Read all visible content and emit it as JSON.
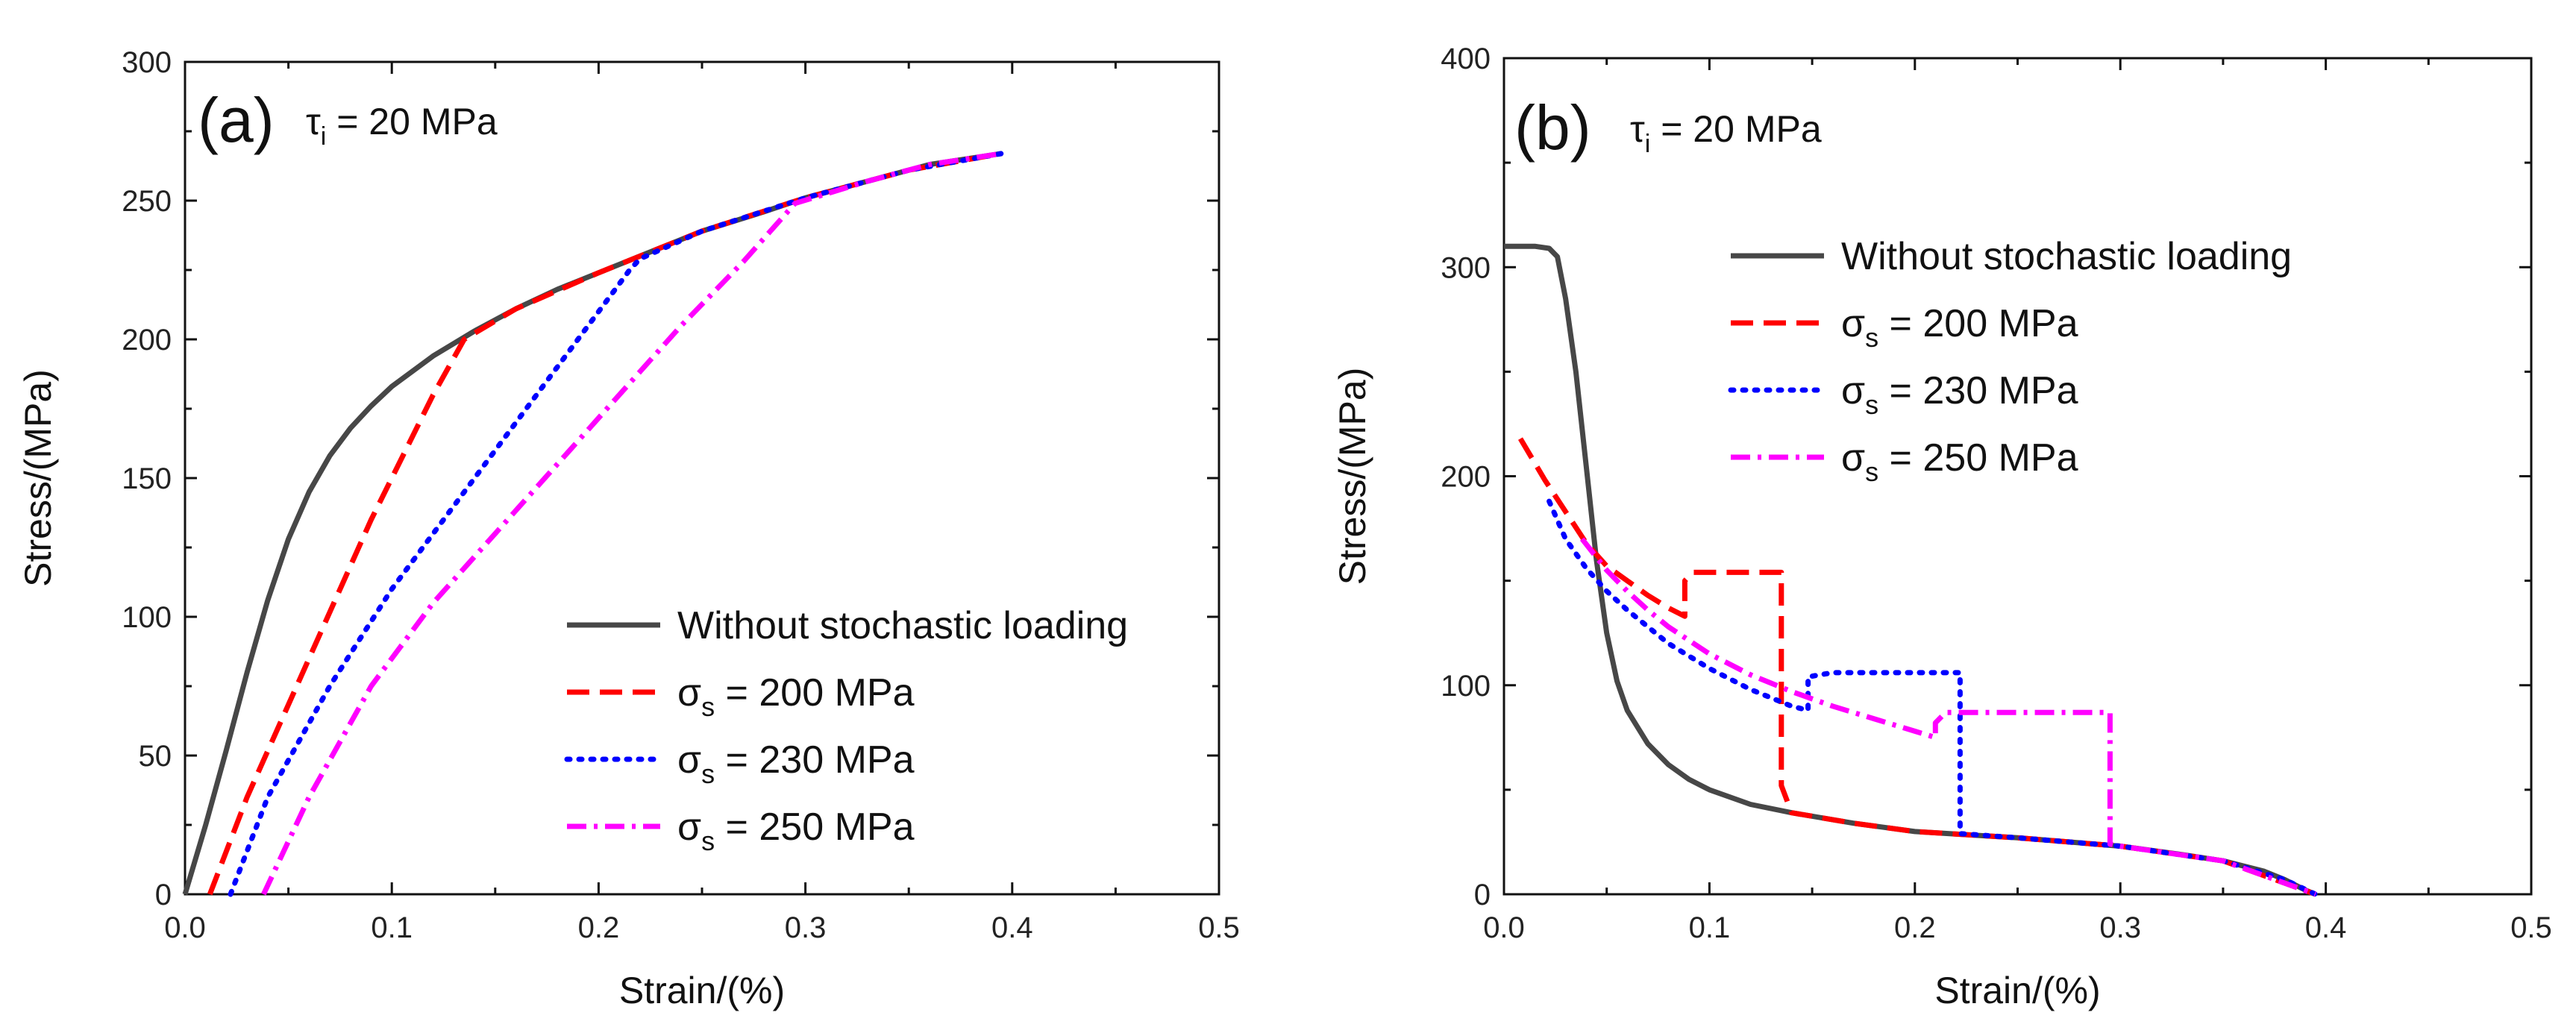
{
  "chart_data": [
    {
      "type": "line",
      "panel_label": "(a)",
      "annotation": {
        "symbol": "τ",
        "subscript": "i",
        "text": " = 20 MPa"
      },
      "xlabel": "Strain/(%)",
      "ylabel": "Stress/(MPa)",
      "xlim": [
        0,
        0.5
      ],
      "ylim": [
        0,
        300
      ],
      "xticks": [
        "0.0",
        "0.1",
        "0.2",
        "0.3",
        "0.4",
        "0.5"
      ],
      "yticks": [
        "0",
        "50",
        "100",
        "150",
        "200",
        "250",
        "300"
      ],
      "legend_position": "bottom-right",
      "series": [
        {
          "name": "Without stochastic loading",
          "symbol": "",
          "subscript": "",
          "text": "Without stochastic loading",
          "color": "#474747",
          "style": "solid",
          "x": [
            0,
            0.01,
            0.02,
            0.03,
            0.04,
            0.05,
            0.06,
            0.07,
            0.08,
            0.09,
            0.1,
            0.12,
            0.14,
            0.16,
            0.18,
            0.2,
            0.22,
            0.25,
            0.28,
            0.3,
            0.33,
            0.36,
            0.395
          ],
          "y": [
            0,
            25,
            52,
            80,
            106,
            128,
            145,
            158,
            168,
            176,
            183,
            194,
            203,
            211,
            218,
            224,
            230,
            239,
            246,
            251,
            257,
            263,
            267
          ]
        },
        {
          "name": "σs = 200 MPa",
          "symbol": "σ",
          "subscript": "s",
          "text": " = 200 MPa",
          "color": "#ff0000",
          "style": "dash",
          "x": [
            0.012,
            0.03,
            0.06,
            0.09,
            0.12,
            0.135,
            0.16,
            0.2,
            0.25,
            0.3,
            0.35,
            0.395
          ],
          "y": [
            0,
            35,
            85,
            135,
            180,
            200,
            211,
            224,
            239,
            251,
            261,
            267
          ]
        },
        {
          "name": "σs = 230 MPa",
          "symbol": "σ",
          "subscript": "s",
          "text": " = 230 MPa",
          "color": "#0000ff",
          "style": "dot",
          "x": [
            0.022,
            0.04,
            0.07,
            0.1,
            0.13,
            0.16,
            0.19,
            0.215,
            0.22,
            0.25,
            0.3,
            0.35,
            0.395
          ],
          "y": [
            0,
            35,
            75,
            110,
            140,
            170,
            200,
            225,
            229,
            239,
            251,
            261,
            267
          ]
        },
        {
          "name": "σs = 250 MPa",
          "symbol": "σ",
          "subscript": "s",
          "text": " = 250 MPa",
          "color": "#ff00ff",
          "style": "dashdot",
          "x": [
            0.038,
            0.06,
            0.09,
            0.12,
            0.15,
            0.18,
            0.21,
            0.24,
            0.27,
            0.295,
            0.33,
            0.36,
            0.395
          ],
          "y": [
            0,
            35,
            75,
            105,
            130,
            155,
            180,
            205,
            228,
            249,
            257,
            263,
            267
          ]
        }
      ]
    },
    {
      "type": "line",
      "panel_label": "(b)",
      "annotation": {
        "symbol": "τ",
        "subscript": "i",
        "text": " = 20 MPa"
      },
      "xlabel": "Strain/(%)",
      "ylabel": "Stress/(MPa)",
      "xlim": [
        0,
        0.5
      ],
      "ylim": [
        0,
        400
      ],
      "xticks": [
        "0.0",
        "0.1",
        "0.2",
        "0.3",
        "0.4",
        "0.5"
      ],
      "yticks": [
        "0",
        "100",
        "200",
        "300",
        "400"
      ],
      "legend_position": "top-center",
      "series": [
        {
          "name": "Without stochastic loading",
          "symbol": "",
          "subscript": "",
          "text": "Without stochastic loading",
          "color": "#474747",
          "style": "solid",
          "x": [
            0,
            0.015,
            0.022,
            0.026,
            0.03,
            0.035,
            0.04,
            0.045,
            0.05,
            0.055,
            0.06,
            0.07,
            0.08,
            0.09,
            0.1,
            0.12,
            0.14,
            0.17,
            0.2,
            0.25,
            0.3,
            0.33,
            0.35,
            0.37,
            0.38,
            0.39,
            0.395
          ],
          "y": [
            310,
            310,
            309,
            305,
            285,
            250,
            205,
            160,
            125,
            102,
            88,
            72,
            62,
            55,
            50,
            43,
            39,
            34,
            30,
            27,
            23,
            19,
            16,
            11,
            7,
            2,
            0
          ]
        },
        {
          "name": "σs = 200 MPa",
          "symbol": "σ",
          "subscript": "s",
          "text": " = 200 MPa",
          "color": "#ff0000",
          "style": "dash",
          "x": [
            0.008,
            0.02,
            0.03,
            0.04,
            0.05,
            0.06,
            0.07,
            0.08,
            0.088,
            0.088,
            0.092,
            0.135,
            0.135,
            0.14,
            0.17,
            0.2,
            0.25,
            0.3,
            0.35,
            0.395
          ],
          "y": [
            218,
            198,
            183,
            168,
            157,
            150,
            143,
            137,
            133,
            150,
            154,
            154,
            52,
            39,
            34,
            30,
            27,
            23,
            16,
            0
          ]
        },
        {
          "name": "σs = 230 MPa",
          "symbol": "σ",
          "subscript": "s",
          "text": " = 230 MPa",
          "color": "#0000ff",
          "style": "dot",
          "x": [
            0.022,
            0.03,
            0.04,
            0.05,
            0.06,
            0.07,
            0.08,
            0.1,
            0.12,
            0.14,
            0.148,
            0.148,
            0.16,
            0.222,
            0.222,
            0.25,
            0.3,
            0.35,
            0.38,
            0.395
          ],
          "y": [
            188,
            170,
            156,
            145,
            136,
            128,
            120,
            108,
            98,
            90,
            88,
            104,
            106,
            106,
            29,
            27,
            23,
            16,
            7,
            0
          ]
        },
        {
          "name": "σs = 250 MPa",
          "symbol": "σ",
          "subscript": "s",
          "text": " = 250 MPa",
          "color": "#ff00ff",
          "style": "dashdot",
          "x": [
            0.038,
            0.05,
            0.06,
            0.07,
            0.08,
            0.1,
            0.12,
            0.14,
            0.16,
            0.18,
            0.2,
            0.21,
            0.21,
            0.215,
            0.295,
            0.295,
            0.3,
            0.35,
            0.395
          ],
          "y": [
            170,
            155,
            145,
            136,
            128,
            115,
            105,
            97,
            90,
            84,
            78,
            75,
            82,
            87,
            87,
            24,
            23,
            16,
            0
          ]
        }
      ]
    }
  ]
}
